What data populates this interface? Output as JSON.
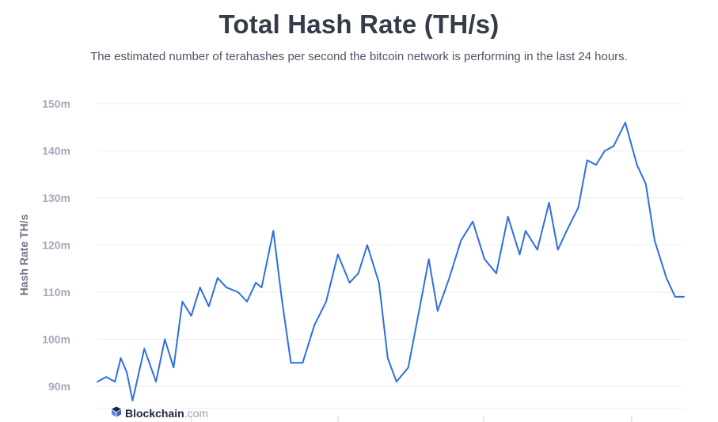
{
  "chart_data": {
    "type": "line",
    "title": "Total Hash Rate (TH/s)",
    "subtitle": "The estimated number of terahashes per second the bitcoin network is performing in the last 24 hours.",
    "ylabel": "Hash Rate TH/s",
    "xlabel": "",
    "ylim": [
      83,
      152
    ],
    "yticks": [
      90,
      100,
      110,
      120,
      130,
      140,
      150
    ],
    "ytick_labels": [
      "90m",
      "100m",
      "110m",
      "120m",
      "130m",
      "140m",
      "150m"
    ],
    "grid": true,
    "series": [
      {
        "color": "#2f6fdf",
        "x": [
          0,
          1.5,
          3,
          4,
          5,
          6,
          8,
          10,
          11.5,
          13,
          14.5,
          16,
          17.5,
          19,
          20.5,
          22,
          24,
          25.5,
          27,
          28,
          30,
          31.5,
          33,
          35,
          37,
          39,
          41,
          43,
          44.5,
          46,
          48,
          49.5,
          51,
          53,
          55,
          56.5,
          58,
          60,
          62,
          64,
          66,
          68,
          70,
          72,
          73,
          75,
          77,
          78.5,
          80,
          82,
          83.5,
          85,
          86.5,
          88,
          90,
          92,
          93.5,
          95,
          97,
          98.5,
          100
        ],
        "y": [
          91,
          92,
          91,
          96,
          93,
          87,
          98,
          91,
          100,
          94,
          108,
          105,
          111,
          107,
          113,
          111,
          110,
          108,
          112,
          111,
          123,
          108,
          95,
          95,
          103,
          108,
          118,
          112,
          114,
          120,
          112,
          96,
          91,
          94,
          107,
          117,
          106,
          113,
          121,
          125,
          117,
          114,
          126,
          118,
          123,
          119,
          129,
          119,
          123,
          128,
          138,
          137,
          140,
          141,
          146,
          137,
          133,
          121,
          113,
          109,
          109
        ]
      }
    ]
  },
  "brand": {
    "name": "Blockchain",
    "tld": ".com",
    "icon": "blockchain-cube-icon",
    "color": "#1a2541",
    "accent": "#5f8dd8"
  }
}
